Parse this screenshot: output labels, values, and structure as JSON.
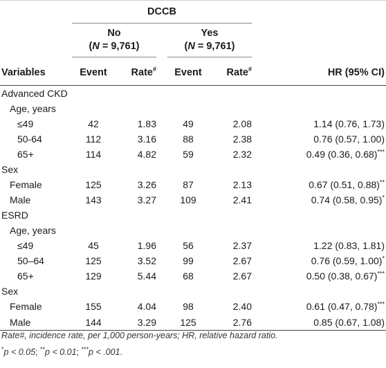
{
  "header": {
    "group": "DCCB",
    "no_label": "No",
    "no_n": "(N = 9,761)",
    "yes_label": "Yes",
    "yes_n": "(N = 9,761)",
    "n_letter": "N",
    "n_value": " = 9,761)",
    "col_variables": "Variables",
    "col_event": "Event",
    "col_rate": "Rate",
    "rate_sup": "#",
    "col_hr": "HR (95% CI)"
  },
  "rows": [
    {
      "label": "Advanced CKD",
      "level": 0,
      "event_no": "",
      "rate_no": "",
      "event_yes": "",
      "rate_yes": "",
      "hr": "",
      "sig": ""
    },
    {
      "label": "Age, years",
      "level": 1,
      "event_no": "",
      "rate_no": "",
      "event_yes": "",
      "rate_yes": "",
      "hr": "",
      "sig": ""
    },
    {
      "label": "≤49",
      "level": 2,
      "event_no": "42",
      "rate_no": "1.83",
      "event_yes": "49",
      "rate_yes": "2.08",
      "hr": "1.14 (0.76, 1.73)",
      "sig": ""
    },
    {
      "label": "50-64",
      "level": 2,
      "event_no": "112",
      "rate_no": "3.16",
      "event_yes": "88",
      "rate_yes": "2.38",
      "hr": "0.76 (0.57, 1.00)",
      "sig": ""
    },
    {
      "label": "65+",
      "level": 2,
      "event_no": "114",
      "rate_no": "4.82",
      "event_yes": "59",
      "rate_yes": "2.32",
      "hr": "0.49 (0.36, 0.68)",
      "sig": "***"
    },
    {
      "label": "Sex",
      "level": 0,
      "event_no": "",
      "rate_no": "",
      "event_yes": "",
      "rate_yes": "",
      "hr": "",
      "sig": ""
    },
    {
      "label": "Female",
      "level": 1,
      "event_no": "125",
      "rate_no": "3.26",
      "event_yes": "87",
      "rate_yes": "2.13",
      "hr": "0.67 (0.51, 0.88)",
      "sig": "**"
    },
    {
      "label": "Male",
      "level": 1,
      "event_no": "143",
      "rate_no": "3.27",
      "event_yes": "109",
      "rate_yes": "2.41",
      "hr": "0.74 (0.58, 0.95)",
      "sig": "*"
    },
    {
      "label": "ESRD",
      "level": 0,
      "event_no": "",
      "rate_no": "",
      "event_yes": "",
      "rate_yes": "",
      "hr": "",
      "sig": ""
    },
    {
      "label": "Age, years",
      "level": 1,
      "event_no": "",
      "rate_no": "",
      "event_yes": "",
      "rate_yes": "",
      "hr": "",
      "sig": ""
    },
    {
      "label": "≤49",
      "level": 2,
      "event_no": "45",
      "rate_no": "1.96",
      "event_yes": "56",
      "rate_yes": "2.37",
      "hr": "1.22 (0.83, 1.81)",
      "sig": ""
    },
    {
      "label": "50–64",
      "level": 2,
      "event_no": "125",
      "rate_no": "3.52",
      "event_yes": "99",
      "rate_yes": "2.67",
      "hr": "0.76 (0.59, 1.00)",
      "sig": "*"
    },
    {
      "label": "65+",
      "level": 2,
      "event_no": "129",
      "rate_no": "5.44",
      "event_yes": "68",
      "rate_yes": "2.67",
      "hr": "0.50 (0.38, 0.67)",
      "sig": "***"
    },
    {
      "label": "Sex",
      "level": 0,
      "event_no": "",
      "rate_no": "",
      "event_yes": "",
      "rate_yes": "",
      "hr": "",
      "sig": ""
    },
    {
      "label": "Female",
      "level": 1,
      "event_no": "155",
      "rate_no": "4.04",
      "event_yes": "98",
      "rate_yes": "2.40",
      "hr": "0.61 (0.47, 0.78)",
      "sig": "***"
    },
    {
      "label": "Male",
      "level": 1,
      "event_no": "144",
      "rate_no": "3.29",
      "event_yes": "125",
      "rate_yes": "2.76",
      "hr": "0.85 (0.67, 1.08)",
      "sig": ""
    }
  ],
  "footnotes": {
    "line1": "Rate#, incidence rate, per 1,000 person-years; HR, relative hazard ratio.",
    "star1": "*",
    "p1": "p < 0.05",
    "sep1": "; ",
    "star2": "**",
    "p2": "p < 0.01",
    "sep2": "; ",
    "star3": "***",
    "p3": "p < .001",
    "end": "."
  }
}
